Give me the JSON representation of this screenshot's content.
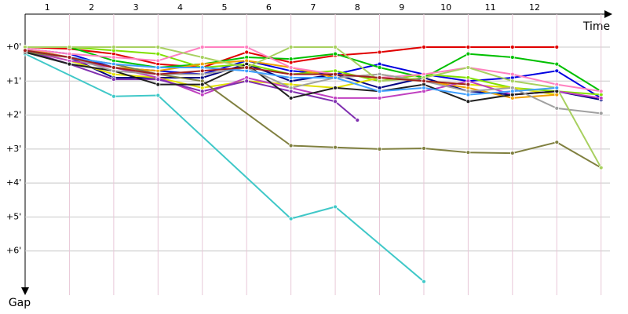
{
  "chart_data": {
    "type": "line",
    "x_label": "Time",
    "y_label": "Gap",
    "x": [
      0,
      1,
      2,
      3,
      4,
      5,
      6,
      7,
      8,
      9,
      10,
      11,
      12,
      13
    ],
    "xlim": [
      0,
      13.2
    ],
    "xticks": [
      {
        "value": 0.5,
        "label": "1"
      },
      {
        "value": 1.5,
        "label": "2"
      },
      {
        "value": 2.5,
        "label": "3"
      },
      {
        "value": 3.5,
        "label": "4"
      },
      {
        "value": 4.5,
        "label": "5"
      },
      {
        "value": 5.5,
        "label": "6"
      },
      {
        "value": 6.5,
        "label": "7"
      },
      {
        "value": 7.5,
        "label": "8"
      },
      {
        "value": 8.5,
        "label": "9"
      },
      {
        "value": 9.5,
        "label": "10"
      },
      {
        "value": 10.5,
        "label": "11"
      },
      {
        "value": 11.5,
        "label": "12"
      }
    ],
    "ylim": [
      -0.97,
      7.3
    ],
    "yticks": [
      {
        "value": 0,
        "label": "+0'"
      },
      {
        "value": 1,
        "label": "+1'"
      },
      {
        "value": 2,
        "label": "+2'"
      },
      {
        "value": 3,
        "label": "+3'"
      },
      {
        "value": 4,
        "label": "+4'"
      },
      {
        "value": 5,
        "label": "+5'"
      },
      {
        "value": 6,
        "label": "+6'"
      }
    ],
    "grid": true,
    "series": [
      {
        "color": "#e00000",
        "values": [
          0,
          0.05,
          0.2,
          0.5,
          0.6,
          0.15,
          0.45,
          0.25,
          0.15,
          0,
          0,
          0,
          0,
          null
        ]
      },
      {
        "color": "#0000e0",
        "values": [
          0.05,
          0.2,
          0.6,
          0.7,
          0.8,
          0.4,
          0.7,
          0.8,
          0.5,
          0.8,
          1.0,
          0.9,
          0.7,
          1.5
        ]
      },
      {
        "color": "#000080",
        "values": [
          0.1,
          0.3,
          0.9,
          0.9,
          0.9,
          0.5,
          1.0,
          0.8,
          1.2,
          0.9,
          1.3,
          1.4,
          1.3,
          1.55
        ]
      },
      {
        "color": "#00c000",
        "values": [
          0,
          0,
          0.4,
          0.6,
          0.5,
          0.3,
          0.35,
          0.2,
          0.6,
          0.9,
          0.2,
          0.3,
          0.5,
          1.3
        ]
      },
      {
        "color": "#80e000",
        "values": [
          0,
          0,
          0.1,
          0.2,
          0.6,
          0.5,
          0.8,
          0.7,
          1.0,
          0.8,
          0.9,
          1.2,
          1.3,
          1.4
        ]
      },
      {
        "color": "#e0e000",
        "values": [
          0.1,
          0.4,
          0.8,
          0.9,
          1.2,
          1.0,
          1.1,
          1.2,
          0.9,
          1.0,
          1.1,
          1.2,
          1.4,
          null
        ]
      },
      {
        "color": "#f0a000",
        "values": [
          0.05,
          0.3,
          0.6,
          0.7,
          0.5,
          0.4,
          0.6,
          0.9,
          0.8,
          1.0,
          1.2,
          1.5,
          1.4,
          null
        ]
      },
      {
        "color": "#ff80c0",
        "values": [
          0.05,
          0.2,
          0.3,
          0.4,
          0,
          0,
          0.6,
          0.8,
          0.9,
          0.8,
          0.6,
          0.8,
          1.1,
          1.3
        ]
      },
      {
        "color": "#c040c0",
        "values": [
          0.1,
          0.4,
          0.6,
          0.9,
          1.4,
          0.9,
          1.2,
          1.5,
          1.5,
          1.3,
          1.0,
          1.4,
          1.3,
          1.5
        ]
      },
      {
        "color": "#8030b0",
        "x": [
          0,
          1,
          2,
          3,
          4,
          5,
          6,
          7,
          7.5
        ],
        "values": [
          0.1,
          0.5,
          0.95,
          0.95,
          1.3,
          1.0,
          1.3,
          1.6,
          2.15
        ]
      },
      {
        "color": "#40c8c8",
        "x": [
          0,
          2,
          3,
          6,
          7,
          9
        ],
        "values": [
          0.2,
          1.45,
          1.42,
          5.05,
          4.7,
          6.9
        ]
      },
      {
        "color": "#808040",
        "x": [
          0,
          1,
          2,
          3,
          4,
          6,
          7,
          8,
          9,
          10,
          11,
          12,
          13
        ],
        "values": [
          0.15,
          0.3,
          0.5,
          0.8,
          1.0,
          2.9,
          2.95,
          3.0,
          2.98,
          3.1,
          3.12,
          2.8,
          3.55
        ]
      },
      {
        "color": "#202020",
        "values": [
          0.15,
          0.5,
          0.7,
          1.1,
          1.1,
          0.5,
          1.5,
          1.2,
          1.3,
          1.1,
          1.6,
          1.4,
          1.3,
          null
        ]
      },
      {
        "color": "#a0a0a0",
        "values": [
          0.1,
          0.3,
          0.7,
          0.8,
          0.8,
          0.6,
          1.2,
          0.9,
          0.8,
          1.0,
          1.3,
          1.2,
          1.8,
          1.95
        ]
      },
      {
        "color": "#a8d060",
        "values": [
          0,
          0,
          0,
          0,
          0.3,
          0.6,
          0,
          0,
          1.0,
          0.9,
          0.6,
          1.0,
          1.2,
          3.55
        ]
      },
      {
        "color": "#40a0ff",
        "values": [
          0.1,
          0.3,
          0.5,
          0.6,
          0.6,
          0.7,
          0.9,
          0.9,
          1.3,
          1.2,
          1.4,
          1.3,
          1.2,
          null
        ]
      },
      {
        "color": "#a02020",
        "values": [
          0.1,
          0.3,
          0.6,
          0.8,
          0.7,
          0.6,
          0.8,
          0.8,
          0.9,
          1.0,
          1.1,
          null,
          null,
          null
        ]
      }
    ]
  }
}
